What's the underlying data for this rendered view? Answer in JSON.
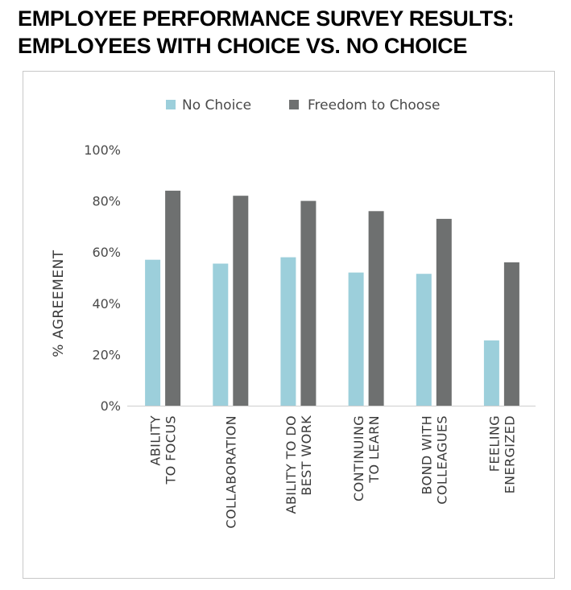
{
  "title": {
    "line1": "EMPLOYEE PERFORMANCE SURVEY RESULTS:",
    "line2": "EMPLOYEES WITH CHOICE VS. NO CHOICE"
  },
  "chart_data": {
    "type": "bar",
    "title": "EMPLOYEE PERFORMANCE SURVEY RESULTS: EMPLOYEES WITH CHOICE VS. NO CHOICE",
    "xlabel": "",
    "ylabel": "% AGREEMENT",
    "ylim": [
      0,
      100
    ],
    "yticks": [
      "0%",
      "20%",
      "40%",
      "60%",
      "80%",
      "100%"
    ],
    "grid": false,
    "legend": "top-center",
    "categories": [
      [
        "ABILITY",
        "TO FOCUS"
      ],
      [
        "COLLABORATION"
      ],
      [
        "ABILITY TO DO",
        "BEST WORK"
      ],
      [
        "CONTINUING",
        "TO LEARN"
      ],
      [
        "BOND WITH",
        "COLLEAGUES"
      ],
      [
        "FEELING",
        "ENERGIZED"
      ]
    ],
    "series": [
      {
        "name": "No Choice",
        "color": "#9ccfdb",
        "values": [
          57,
          55.5,
          58,
          52,
          51.5,
          25.5
        ]
      },
      {
        "name": "Freedom to Choose",
        "color": "#6e7070",
        "values": [
          84,
          82,
          80,
          76,
          73,
          56
        ]
      }
    ]
  }
}
